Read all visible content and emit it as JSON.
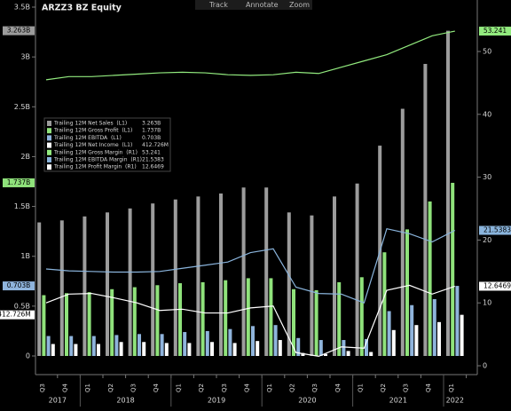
{
  "toolbar": {
    "track": "Track",
    "annotate": "Annotate",
    "zoom": "Zoom"
  },
  "chart_data": {
    "type": "bar",
    "title": "ARZZ3 BZ Equity",
    "categories": [
      "Q3",
      "Q4",
      "Q1",
      "Q2",
      "Q3",
      "Q4",
      "Q1",
      "Q2",
      "Q3",
      "Q4",
      "Q1",
      "Q2",
      "Q3",
      "Q4",
      "Q1",
      "Q2",
      "Q3",
      "Q4",
      "Q1"
    ],
    "year_labels": [
      "2017",
      "2018",
      "2019",
      "2020",
      "2021",
      "2022"
    ],
    "ylim": [
      -0.187,
      3.5
    ],
    "yticks": [
      0,
      {
        "value": 0.5,
        "label": "0.5B"
      },
      {
        "value": 1,
        "label": "1B"
      },
      {
        "value": 1.5,
        "label": "1.5B"
      },
      {
        "value": 2,
        "label": "2B"
      },
      {
        "value": 2.5,
        "label": "2.5B"
      },
      {
        "value": 3,
        "label": "3B"
      },
      {
        "value": 3.5,
        "label": "3.5B"
      }
    ],
    "y2lim": [
      -1.41,
      57.06
    ],
    "y2ticks": [
      0,
      10,
      20,
      30,
      40,
      50
    ],
    "legend": "upper left",
    "series": [
      {
        "name": "Trailing 12M Net Sales  (L1)",
        "type": "bar",
        "color": "#9c9c9c",
        "value_label": "3.263B",
        "values": [
          1.34,
          1.36,
          1.4,
          1.44,
          1.48,
          1.53,
          1.57,
          1.6,
          1.63,
          1.69,
          1.69,
          1.44,
          1.41,
          1.6,
          1.73,
          2.11,
          2.48,
          2.93,
          3.263
        ]
      },
      {
        "name": "Trailing 12M Gross Profit  (L1)",
        "type": "bar",
        "color": "#8fe27b",
        "value_label": "1.737B",
        "values": [
          0.61,
          0.63,
          0.64,
          0.67,
          0.69,
          0.71,
          0.73,
          0.74,
          0.76,
          0.78,
          0.78,
          0.67,
          0.66,
          0.74,
          0.79,
          1.04,
          1.27,
          1.55,
          1.737
        ]
      },
      {
        "name": "Trailing 12M EBITDA  (L1)",
        "type": "bar",
        "color": "#8fb4dc",
        "value_label": "0.703B",
        "values": [
          0.2,
          0.2,
          0.2,
          0.21,
          0.22,
          0.22,
          0.24,
          0.25,
          0.27,
          0.3,
          0.31,
          0.18,
          0.16,
          0.16,
          0.17,
          0.45,
          0.51,
          0.57,
          0.703
        ]
      },
      {
        "name": "Trailing 12M Net Income  (L1)",
        "type": "bar",
        "color": "#ffffff",
        "value_label": "412.726M",
        "values": [
          0.12,
          0.12,
          0.12,
          0.14,
          0.14,
          0.13,
          0.13,
          0.14,
          0.13,
          0.15,
          0.16,
          0.03,
          0.02,
          0.05,
          0.04,
          0.26,
          0.31,
          0.34,
          0.412726
        ]
      },
      {
        "name": "Trailing 12M Gross Margin  (R1)",
        "type": "line",
        "axis": "y2",
        "color": "#92ea7e",
        "value_label": "53.241",
        "values": [
          45.5,
          46.0,
          46.0,
          46.2,
          46.4,
          46.6,
          46.7,
          46.6,
          46.3,
          46.2,
          46.3,
          46.7,
          46.5,
          47.5,
          48.5,
          49.5,
          51.0,
          52.5,
          53.241
        ]
      },
      {
        "name": "Trailing 12M EBITDA Margin  (R1)",
        "type": "line",
        "axis": "y2",
        "color": "#8ab4dc",
        "value_label": "21.5383",
        "values": [
          15.4,
          15.1,
          15.0,
          14.9,
          14.9,
          15.0,
          15.5,
          16.0,
          16.5,
          18.0,
          18.6,
          12.5,
          11.5,
          11.4,
          10.0,
          21.8,
          21.0,
          19.7,
          21.5383
        ]
      },
      {
        "name": "Trailing 12M Profit Margin  (R1)",
        "type": "line",
        "axis": "y2",
        "color": "#ffffff",
        "value_label": "12.6469",
        "values": [
          10.0,
          11.4,
          11.5,
          10.8,
          10.0,
          8.8,
          9.0,
          8.4,
          8.4,
          9.2,
          9.5,
          2.1,
          1.5,
          3.0,
          2.8,
          12.0,
          12.8,
          11.4,
          12.6469
        ]
      }
    ]
  }
}
